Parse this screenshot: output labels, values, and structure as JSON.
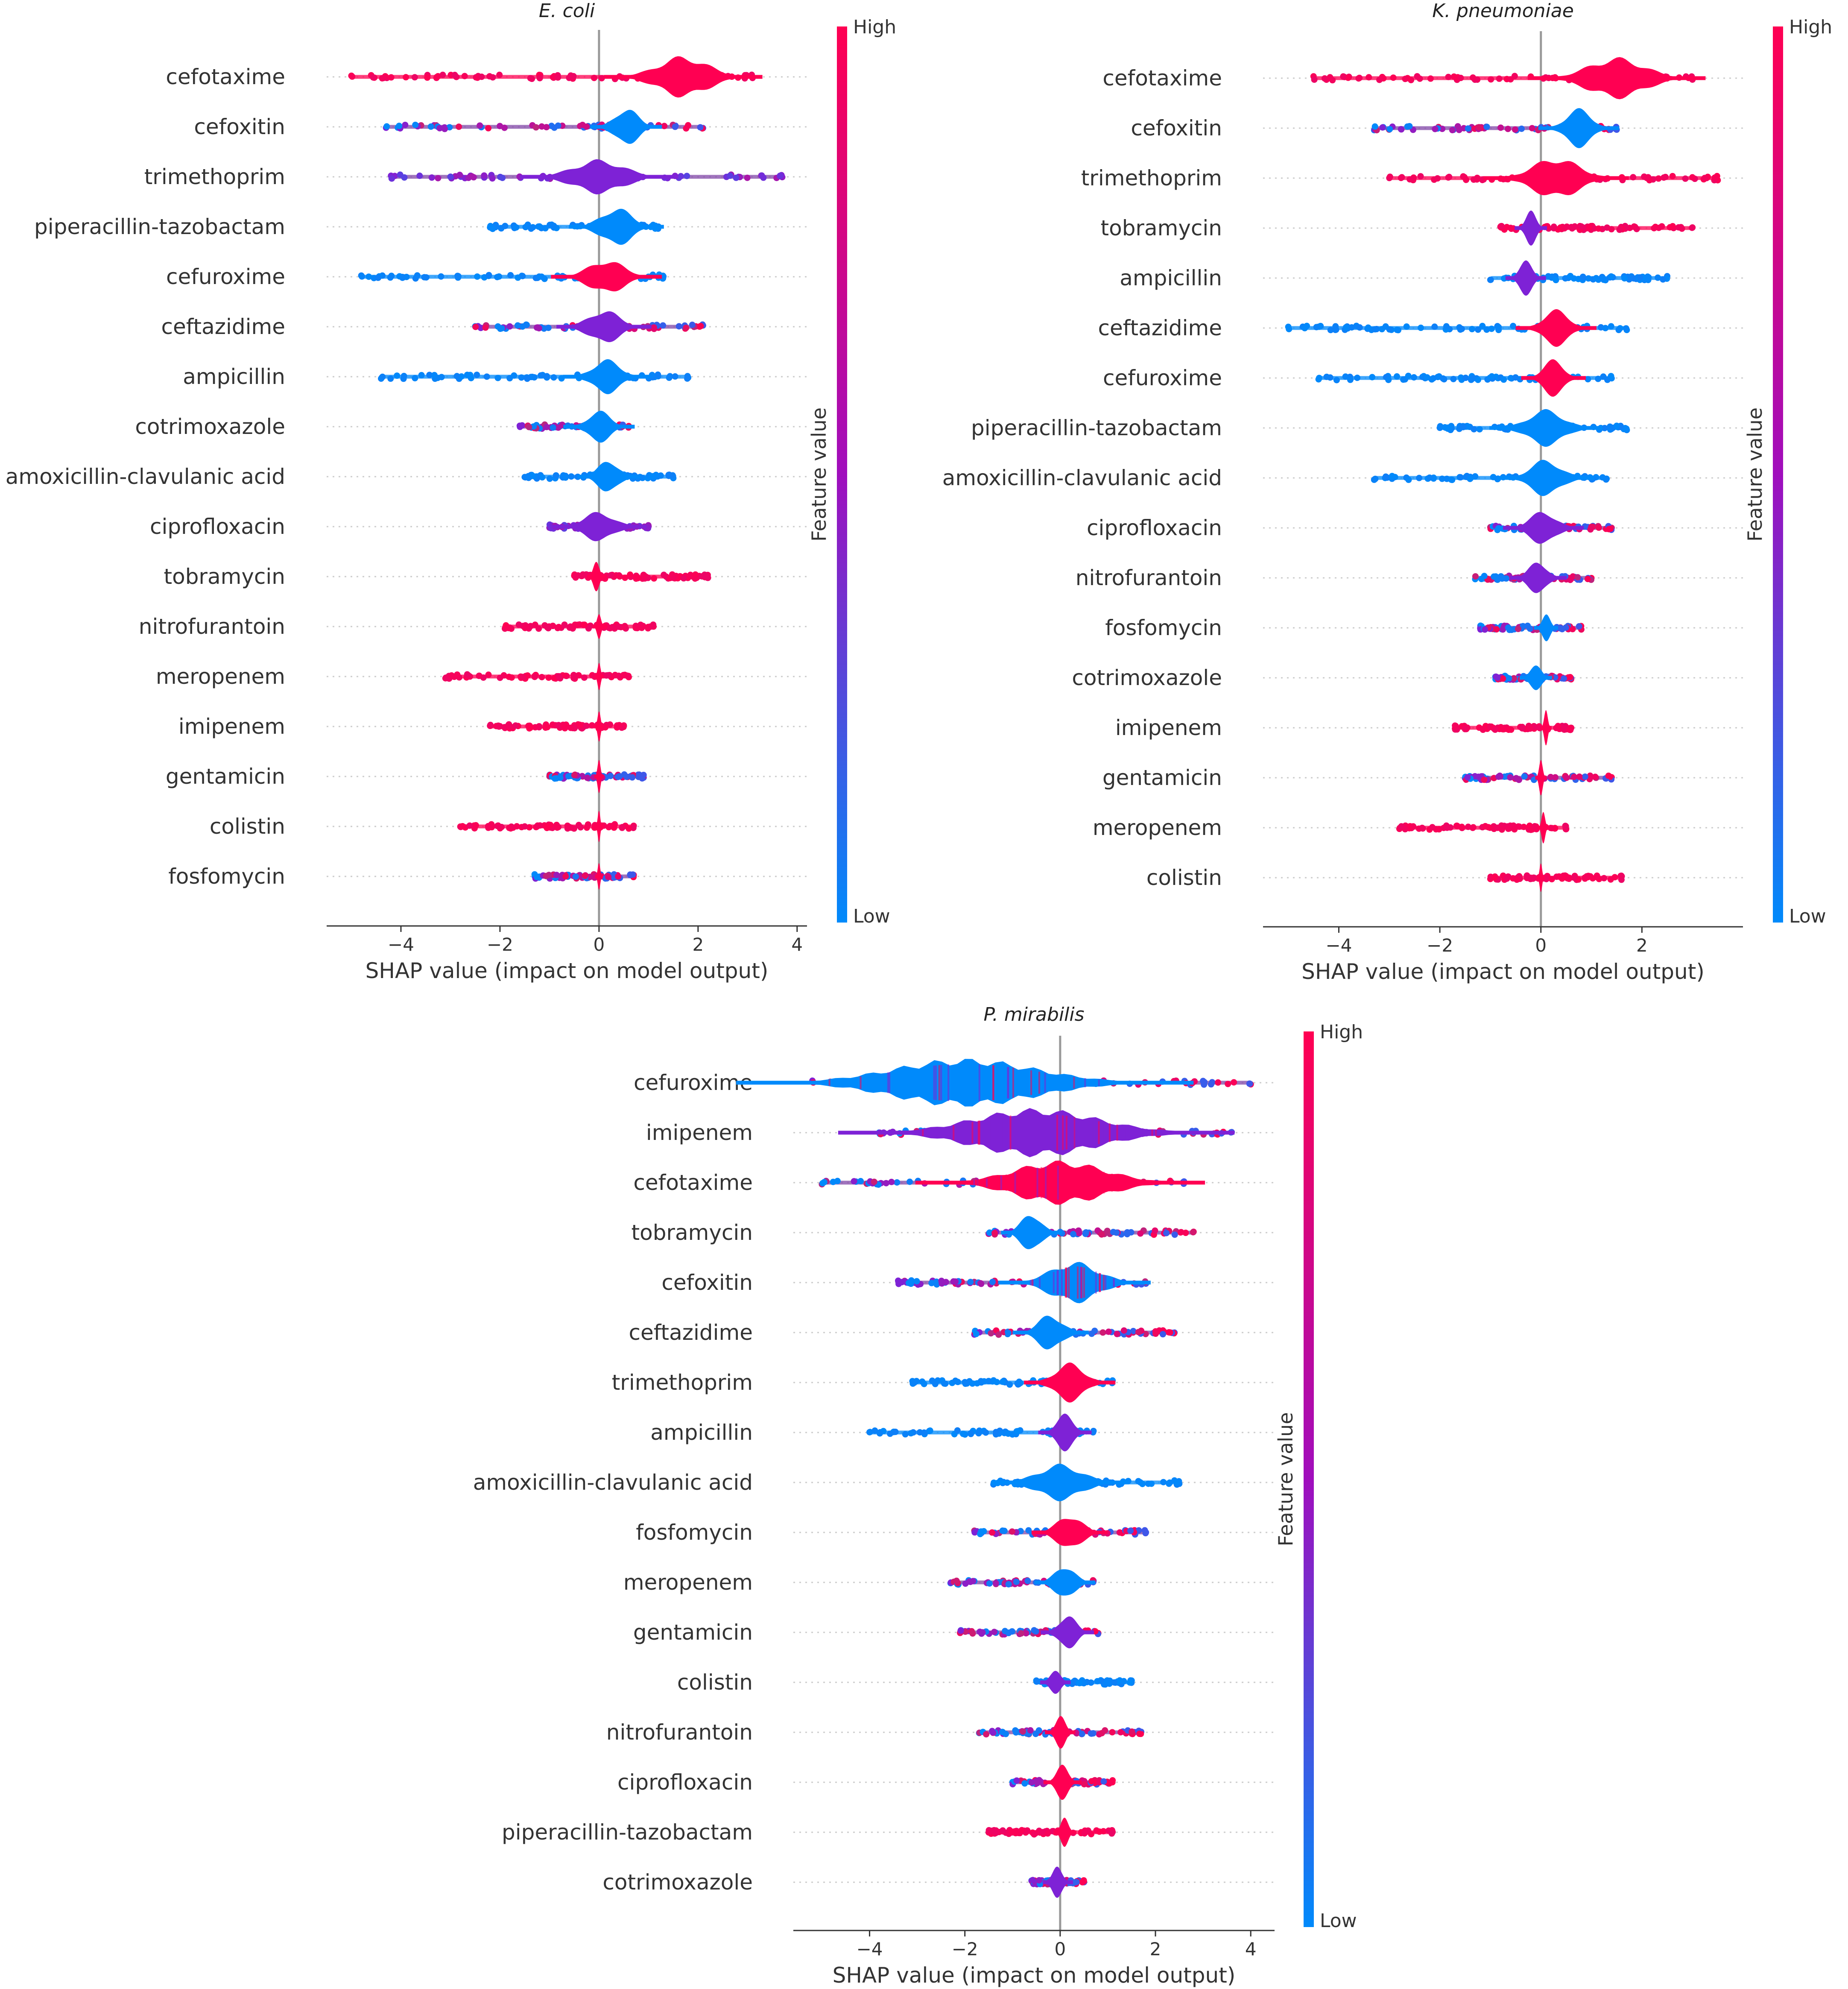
{
  "colors": {
    "low": "#008afb",
    "mid": "#7e22d6",
    "high": "#ff0052",
    "axis": "#333333",
    "zero": "#999999",
    "grid": "#cccccc"
  },
  "chart_data": [
    {
      "type": "scatter",
      "subtype": "shap-beeswarm",
      "title": "E. coli",
      "xlabel": "SHAP value (impact on model output)",
      "xlim": [
        -5.5,
        4.2
      ],
      "xticks": [
        -4,
        -2,
        0,
        2,
        4
      ],
      "xtick_labels": [
        "−4",
        "−2",
        "0",
        "2",
        "4"
      ],
      "colorbar": {
        "high_label": "High",
        "low_label": "Low",
        "label": "Feature value"
      },
      "features": [
        {
          "name": "cefotaxime",
          "min": -5.0,
          "max": 3.1,
          "peak": 1.7,
          "width": 1.0,
          "height": 0.36,
          "dom": "high",
          "peakColor": "high"
        },
        {
          "name": "cefoxitin",
          "min": -4.3,
          "max": 2.1,
          "peak": 0.55,
          "width": 0.45,
          "height": 0.34,
          "dom": "mixed",
          "peakColor": "low"
        },
        {
          "name": "trimethoprim",
          "min": -4.2,
          "max": 3.7,
          "peak": 0.0,
          "width": 1.0,
          "height": 0.3,
          "dom": "mid",
          "peakColor": "mid"
        },
        {
          "name": "piperacillin-tazobactam",
          "min": -2.2,
          "max": 1.2,
          "peak": 0.35,
          "width": 0.6,
          "height": 0.34,
          "dom": "low",
          "peakColor": "low"
        },
        {
          "name": "cefuroxime",
          "min": -4.8,
          "max": 1.3,
          "peak": 0.15,
          "width": 0.7,
          "height": 0.3,
          "dom": "low",
          "peakColor": "high"
        },
        {
          "name": "ceftazidime",
          "min": -2.5,
          "max": 2.1,
          "peak": 0.1,
          "width": 0.6,
          "height": 0.3,
          "dom": "mixed",
          "peakColor": "mid"
        },
        {
          "name": "ampicillin",
          "min": -4.4,
          "max": 1.8,
          "peak": 0.15,
          "width": 0.55,
          "height": 0.3,
          "dom": "low",
          "peakColor": "low"
        },
        {
          "name": "cotrimoxazole",
          "min": -1.6,
          "max": 0.6,
          "peak": 0.0,
          "width": 0.45,
          "height": 0.28,
          "dom": "mixed",
          "peakColor": "low"
        },
        {
          "name": "amoxicillin-clavulanic acid",
          "min": -1.5,
          "max": 1.5,
          "peak": 0.2,
          "width": 0.4,
          "height": 0.3,
          "dom": "low",
          "peakColor": "low"
        },
        {
          "name": "ciprofloxacin",
          "min": -1.0,
          "max": 1.0,
          "peak": 0.0,
          "width": 0.6,
          "height": 0.26,
          "dom": "mid",
          "peakColor": "mid"
        },
        {
          "name": "tobramycin",
          "min": -0.5,
          "max": 2.2,
          "peak": -0.05,
          "width": 0.12,
          "height": 0.3,
          "dom": "high",
          "peakColor": "high"
        },
        {
          "name": "nitrofurantoin",
          "min": -1.9,
          "max": 1.1,
          "peak": 0.0,
          "width": 0.08,
          "height": 0.3,
          "dom": "high",
          "peakColor": "high"
        },
        {
          "name": "meropenem",
          "min": -3.1,
          "max": 0.6,
          "peak": 0.0,
          "width": 0.06,
          "height": 0.3,
          "dom": "high",
          "peakColor": "high"
        },
        {
          "name": "imipenem",
          "min": -2.2,
          "max": 0.5,
          "peak": 0.0,
          "width": 0.06,
          "height": 0.28,
          "dom": "high",
          "peakColor": "high"
        },
        {
          "name": "gentamicin",
          "min": -1.0,
          "max": 0.9,
          "peak": 0.0,
          "width": 0.06,
          "height": 0.28,
          "dom": "mixed",
          "peakColor": "high"
        },
        {
          "name": "colistin",
          "min": -2.8,
          "max": 0.7,
          "peak": 0.0,
          "width": 0.05,
          "height": 0.28,
          "dom": "high",
          "peakColor": "high"
        },
        {
          "name": "fosfomycin",
          "min": -1.3,
          "max": 0.7,
          "peak": 0.0,
          "width": 0.05,
          "height": 0.28,
          "dom": "mixed",
          "peakColor": "high"
        }
      ]
    },
    {
      "type": "scatter",
      "subtype": "shap-beeswarm",
      "title": "K. pneumoniae",
      "xlabel": "SHAP value (impact on model output)",
      "xlim": [
        -5.5,
        4.0
      ],
      "xticks": [
        -4,
        -2,
        0,
        2
      ],
      "xtick_labels": [
        "−4",
        "−2",
        "0",
        "2"
      ],
      "colorbar": {
        "high_label": "High",
        "low_label": "Low",
        "label": "Feature value"
      },
      "features": [
        {
          "name": "cefotaxime",
          "min": -4.5,
          "max": 3.0,
          "peak": 1.5,
          "width": 1.1,
          "height": 0.36,
          "dom": "high",
          "peakColor": "high"
        },
        {
          "name": "cefoxitin",
          "min": -3.3,
          "max": 1.5,
          "peak": 0.75,
          "width": 0.5,
          "height": 0.34,
          "dom": "mixed",
          "peakColor": "low"
        },
        {
          "name": "trimethoprim",
          "min": -3.0,
          "max": 3.5,
          "peak": 0.3,
          "width": 0.9,
          "height": 0.36,
          "dom": "high",
          "peakColor": "high"
        },
        {
          "name": "tobramycin",
          "min": -0.8,
          "max": 3.0,
          "peak": -0.2,
          "width": 0.2,
          "height": 0.3,
          "dom": "high",
          "peakColor": "mid"
        },
        {
          "name": "ampicillin",
          "min": -1.0,
          "max": 2.5,
          "peak": -0.3,
          "width": 0.25,
          "height": 0.3,
          "dom": "low",
          "peakColor": "mid"
        },
        {
          "name": "ceftazidime",
          "min": -5.0,
          "max": 1.7,
          "peak": 0.3,
          "width": 0.5,
          "height": 0.32,
          "dom": "low",
          "peakColor": "high"
        },
        {
          "name": "cefuroxime",
          "min": -4.4,
          "max": 1.4,
          "peak": 0.25,
          "width": 0.4,
          "height": 0.32,
          "dom": "low",
          "peakColor": "high"
        },
        {
          "name": "piperacillin-tazobactam",
          "min": -2.0,
          "max": 1.7,
          "peak": 0.1,
          "width": 0.7,
          "height": 0.32,
          "dom": "low",
          "peakColor": "low"
        },
        {
          "name": "amoxicillin-clavulanic acid",
          "min": -3.3,
          "max": 1.3,
          "peak": 0.1,
          "width": 0.6,
          "height": 0.32,
          "dom": "low",
          "peakColor": "low"
        },
        {
          "name": "ciprofloxacin",
          "min": -1.0,
          "max": 1.4,
          "peak": 0.05,
          "width": 0.5,
          "height": 0.3,
          "dom": "mixed",
          "peakColor": "mid"
        },
        {
          "name": "nitrofurantoin",
          "min": -1.3,
          "max": 1.0,
          "peak": -0.05,
          "width": 0.35,
          "height": 0.3,
          "dom": "mixed",
          "peakColor": "mid"
        },
        {
          "name": "fosfomycin",
          "min": -1.2,
          "max": 0.8,
          "peak": 0.1,
          "width": 0.15,
          "height": 0.3,
          "dom": "mixed",
          "peakColor": "low"
        },
        {
          "name": "cotrimoxazole",
          "min": -0.9,
          "max": 0.6,
          "peak": -0.1,
          "width": 0.2,
          "height": 0.3,
          "dom": "mixed",
          "peakColor": "low"
        },
        {
          "name": "imipenem",
          "min": -1.7,
          "max": 0.6,
          "peak": 0.1,
          "width": 0.07,
          "height": 0.3,
          "dom": "high",
          "peakColor": "high"
        },
        {
          "name": "gentamicin",
          "min": -1.5,
          "max": 1.4,
          "peak": 0.0,
          "width": 0.07,
          "height": 0.3,
          "dom": "mixed",
          "peakColor": "high"
        },
        {
          "name": "meropenem",
          "min": -2.8,
          "max": 0.5,
          "peak": 0.05,
          "width": 0.07,
          "height": 0.3,
          "dom": "high",
          "peakColor": "high"
        },
        {
          "name": "colistin",
          "min": -1.0,
          "max": 1.6,
          "peak": 0.0,
          "width": 0.05,
          "height": 0.3,
          "dom": "high",
          "peakColor": "high"
        }
      ]
    },
    {
      "type": "scatter",
      "subtype": "shap-beeswarm",
      "title": "P. mirabilis",
      "xlabel": "SHAP value (impact on model output)",
      "xlim": [
        -5.6,
        4.5
      ],
      "xticks": [
        -4,
        -2,
        0,
        2,
        4
      ],
      "xtick_labels": [
        "−4",
        "−2",
        "0",
        "2",
        "4"
      ],
      "colorbar": {
        "high_label": "High",
        "low_label": "Low",
        "label": "Feature value"
      },
      "features": [
        {
          "name": "cefuroxime",
          "min": -5.2,
          "max": 4.0,
          "peak": -2.0,
          "width": 3.0,
          "height": 0.42,
          "dom": "mixed",
          "peakColor": "low"
        },
        {
          "name": "imipenem",
          "min": -3.8,
          "max": 3.6,
          "peak": -0.5,
          "width": 2.6,
          "height": 0.42,
          "dom": "mixed",
          "peakColor": "mid"
        },
        {
          "name": "cefotaxime",
          "min": -5.0,
          "max": 2.6,
          "peak": 0.0,
          "width": 1.9,
          "height": 0.38,
          "dom": "mixed",
          "peakColor": "high"
        },
        {
          "name": "tobramycin",
          "min": -1.5,
          "max": 2.8,
          "peak": -0.6,
          "width": 0.4,
          "height": 0.36,
          "dom": "mixed",
          "peakColor": "low"
        },
        {
          "name": "cefoxitin",
          "min": -3.4,
          "max": 1.8,
          "peak": 0.3,
          "width": 1.0,
          "height": 0.36,
          "dom": "mixed",
          "peakColor": "low"
        },
        {
          "name": "ceftazidime",
          "min": -1.8,
          "max": 2.4,
          "peak": -0.2,
          "width": 0.5,
          "height": 0.32,
          "dom": "mixed",
          "peakColor": "low"
        },
        {
          "name": "trimethoprim",
          "min": -3.1,
          "max": 1.1,
          "peak": 0.2,
          "width": 0.6,
          "height": 0.34,
          "dom": "low",
          "peakColor": "high"
        },
        {
          "name": "ampicillin",
          "min": -4.0,
          "max": 0.7,
          "peak": 0.1,
          "width": 0.35,
          "height": 0.32,
          "dom": "low",
          "peakColor": "mid"
        },
        {
          "name": "amoxicillin-clavulanic acid",
          "min": -1.4,
          "max": 2.5,
          "peak": 0.0,
          "width": 0.9,
          "height": 0.32,
          "dom": "low",
          "peakColor": "low"
        },
        {
          "name": "fosfomycin",
          "min": -1.8,
          "max": 1.8,
          "peak": 0.2,
          "width": 0.5,
          "height": 0.32,
          "dom": "mixed",
          "peakColor": "high"
        },
        {
          "name": "meropenem",
          "min": -2.3,
          "max": 0.7,
          "peak": 0.1,
          "width": 0.4,
          "height": 0.32,
          "dom": "mixed",
          "peakColor": "low"
        },
        {
          "name": "gentamicin",
          "min": -2.1,
          "max": 0.8,
          "peak": 0.15,
          "width": 0.35,
          "height": 0.32,
          "dom": "mixed",
          "peakColor": "mid"
        },
        {
          "name": "colistin",
          "min": -0.5,
          "max": 1.5,
          "peak": -0.1,
          "width": 0.2,
          "height": 0.28,
          "dom": "low",
          "peakColor": "mid"
        },
        {
          "name": "nitrofurantoin",
          "min": -1.7,
          "max": 1.7,
          "peak": 0.0,
          "width": 0.2,
          "height": 0.3,
          "dom": "mixed",
          "peakColor": "high"
        },
        {
          "name": "ciprofloxacin",
          "min": -1.0,
          "max": 1.1,
          "peak": 0.05,
          "width": 0.25,
          "height": 0.3,
          "dom": "mixed",
          "peakColor": "high"
        },
        {
          "name": "piperacillin-tazobactam",
          "min": -1.5,
          "max": 1.1,
          "peak": 0.1,
          "width": 0.15,
          "height": 0.3,
          "dom": "high",
          "peakColor": "high"
        },
        {
          "name": "cotrimoxazole",
          "min": -0.6,
          "max": 0.5,
          "peak": -0.05,
          "width": 0.2,
          "height": 0.3,
          "dom": "mixed",
          "peakColor": "mid"
        }
      ]
    }
  ]
}
